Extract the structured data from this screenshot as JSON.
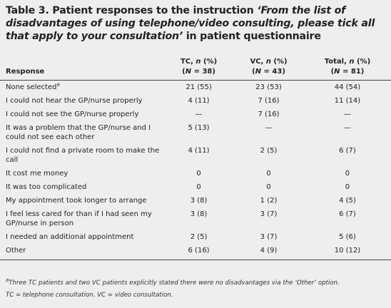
{
  "title": {
    "lead": "Table 3. Patient responses to the instruction ",
    "quote": "‘From the list of disadvantages of using telephone/video consulting, please tick all that apply to your consultation’",
    "tail": " in patient questionnaire"
  },
  "table": {
    "header": {
      "response": "Response",
      "columns": [
        {
          "pre": "TC, ",
          "var": "n",
          "post": " (%)",
          "open": "(",
          "nvar": "N",
          "count": " = 38)"
        },
        {
          "pre": "VC, ",
          "var": "n",
          "post": " (%)",
          "open": "(",
          "nvar": "N",
          "count": " = 43)"
        },
        {
          "pre": "Total, ",
          "var": "n",
          "post": " (%)",
          "open": "(",
          "nvar": "N",
          "count": " = 81)"
        }
      ]
    },
    "rows": [
      {
        "label": "None selected",
        "sup": "a",
        "cells": [
          "21 (55)",
          "23 (53)",
          "44 (54)"
        ]
      },
      {
        "label": "I could not hear the GP/nurse properly",
        "cells": [
          "4 (11)",
          "7 (16)",
          "11 (14)"
        ]
      },
      {
        "label": "I could not see the GP/nurse properly",
        "cells": [
          "—",
          "7 (16)",
          "—"
        ]
      },
      {
        "label": "It was a problem that the GP/nurse and I could not see each other",
        "cells": [
          "5 (13)",
          "—",
          "—"
        ]
      },
      {
        "label": "I could not find a private room to make the call",
        "cells": [
          "4 (11)",
          "2 (5)",
          "6 (7)"
        ]
      },
      {
        "label": "It cost me money",
        "cells": [
          "0",
          "0",
          "0"
        ]
      },
      {
        "label": "It was too complicated",
        "cells": [
          "0",
          "0",
          "0"
        ]
      },
      {
        "label": "My appointment took longer to arrange",
        "cells": [
          "3 (8)",
          "1 (2)",
          "4 (5)"
        ]
      },
      {
        "label": "I feel less cared for than if I had seen my GP/nurse in person",
        "cells": [
          "3 (8)",
          "3 (7)",
          "6 (7)"
        ]
      },
      {
        "label": "I needed an additional appointment",
        "cells": [
          "2 (5)",
          "3 (7)",
          "5 (6)"
        ]
      },
      {
        "label": "Other",
        "cells": [
          "6 (16)",
          "4 (9)",
          "10 (12)"
        ]
      }
    ]
  },
  "footnotes": [
    {
      "sup": "a",
      "text": "Three TC patients and two VC patients explicitly stated there were no disadvantages via the ‘Other’ option."
    },
    {
      "text": "TC = telephone consultation. VC = video consultation."
    }
  ]
}
